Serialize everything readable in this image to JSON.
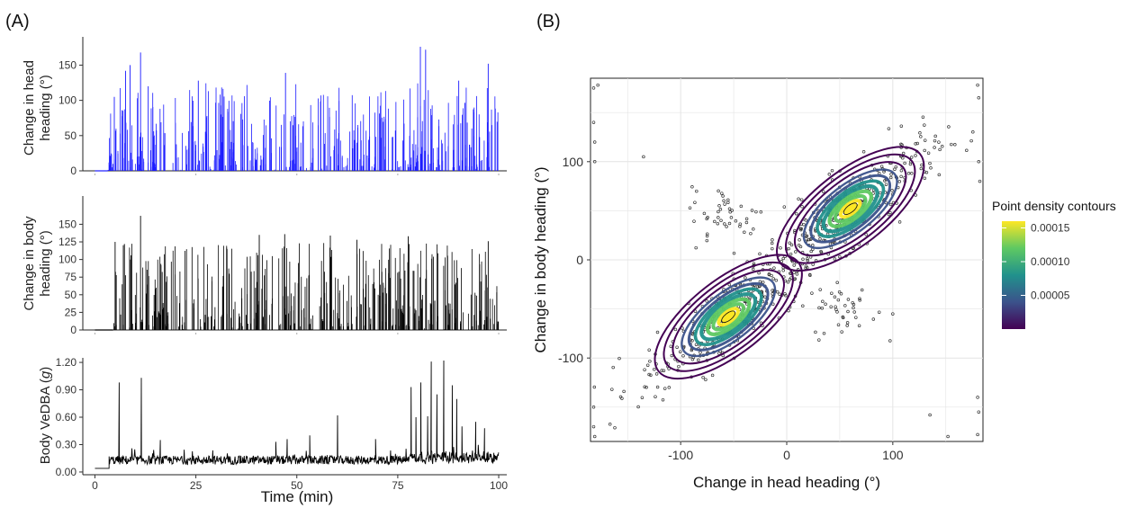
{
  "panel_labels": {
    "a": "(A)",
    "b": "(B)"
  },
  "colors": {
    "head_series": "#1a1aff",
    "body_series": "#000000",
    "vedba_series": "#000000",
    "scatter_points": "#333333",
    "viridis": [
      "#440154",
      "#3b528b",
      "#21918c",
      "#5ec962",
      "#fde725"
    ]
  },
  "chart_data": [
    {
      "type": "bar",
      "name": "head-heading-timeseries",
      "title": "",
      "xlabel": "",
      "ylabel": "Change in head heading (°)",
      "ylabel_lines": [
        "Change in head",
        "heading (°)"
      ],
      "xlim": [
        -3,
        102
      ],
      "ylim": [
        0,
        185
      ],
      "yticks": [
        0,
        50,
        100,
        150
      ],
      "ytick_labels": [
        "0",
        "50",
        "100",
        "150"
      ],
      "x_range_active": [
        3.2,
        100
      ],
      "baseline_value": 0,
      "peaks": [
        {
          "x": 4.8,
          "y": 105
        },
        {
          "x": 7.6,
          "y": 142
        },
        {
          "x": 8.7,
          "y": 150
        },
        {
          "x": 11.3,
          "y": 168
        },
        {
          "x": 13.2,
          "y": 120
        },
        {
          "x": 25.6,
          "y": 128
        },
        {
          "x": 47.2,
          "y": 139
        },
        {
          "x": 80.6,
          "y": 176
        },
        {
          "x": 81.9,
          "y": 172
        },
        {
          "x": 90.1,
          "y": 128
        },
        {
          "x": 97.4,
          "y": 152
        }
      ],
      "grid": false
    },
    {
      "type": "bar",
      "name": "body-heading-timeseries",
      "title": "",
      "xlabel": "",
      "ylabel": "Change in body heading (°)",
      "ylabel_lines": [
        "Change in body",
        "heading (°)"
      ],
      "xlim": [
        -3,
        102
      ],
      "ylim": [
        0,
        185
      ],
      "yticks": [
        0,
        25,
        50,
        75,
        100,
        125,
        150
      ],
      "ytick_labels": [
        "0",
        "25",
        "50",
        "75",
        "100",
        "125",
        "150"
      ],
      "x_range_active": [
        4.5,
        100
      ],
      "baseline_value": 0,
      "peaks": [
        {
          "x": 5.0,
          "y": 125
        },
        {
          "x": 7.3,
          "y": 122
        },
        {
          "x": 11.3,
          "y": 162
        },
        {
          "x": 40.7,
          "y": 135
        },
        {
          "x": 47.0,
          "y": 136
        },
        {
          "x": 58.3,
          "y": 134
        },
        {
          "x": 64.9,
          "y": 128
        },
        {
          "x": 77.6,
          "y": 133
        },
        {
          "x": 97.4,
          "y": 126
        }
      ],
      "grid": false
    },
    {
      "type": "line",
      "name": "vedba-timeseries",
      "title": "",
      "xlabel": "Time (min)",
      "ylabel": "Body VeDBA (g)",
      "ylabel_parts": [
        "Body VeDBA (",
        "g",
        ")"
      ],
      "xlim": [
        -3,
        102
      ],
      "ylim": [
        -0.03,
        1.25
      ],
      "xticks": [
        0,
        25,
        50,
        75,
        100
      ],
      "xtick_labels": [
        "0",
        "25",
        "50",
        "75",
        "100"
      ],
      "yticks": [
        0.0,
        0.3,
        0.6,
        0.9,
        1.2
      ],
      "ytick_labels": [
        "0.00",
        "0.30",
        "0.60",
        "0.90",
        "1.20"
      ],
      "baseline_level": 0.04,
      "noise_level": 0.12,
      "spikes": [
        {
          "x": 6.0,
          "y": 0.98
        },
        {
          "x": 11.5,
          "y": 1.03
        },
        {
          "x": 16.2,
          "y": 0.35
        },
        {
          "x": 44.8,
          "y": 0.33
        },
        {
          "x": 47.6,
          "y": 0.36
        },
        {
          "x": 53.2,
          "y": 0.4
        },
        {
          "x": 60.1,
          "y": 0.62
        },
        {
          "x": 69.5,
          "y": 0.36
        },
        {
          "x": 78.3,
          "y": 0.93
        },
        {
          "x": 79.5,
          "y": 0.6
        },
        {
          "x": 80.7,
          "y": 0.98
        },
        {
          "x": 82.4,
          "y": 0.61
        },
        {
          "x": 83.3,
          "y": 1.21
        },
        {
          "x": 84.7,
          "y": 0.85
        },
        {
          "x": 86.4,
          "y": 1.22
        },
        {
          "x": 88.5,
          "y": 0.95
        },
        {
          "x": 89.6,
          "y": 0.8
        },
        {
          "x": 90.9,
          "y": 0.5
        },
        {
          "x": 94.3,
          "y": 0.55
        },
        {
          "x": 96.5,
          "y": 0.48
        }
      ],
      "grid": false
    },
    {
      "type": "scatter",
      "name": "head-vs-body-density",
      "title": "",
      "xlabel": "Change in head heading (°)",
      "ylabel": "Change in body heading (°)",
      "xlim": [
        -185,
        185
      ],
      "ylim": [
        -185,
        185
      ],
      "xticks": [
        -100,
        0,
        100
      ],
      "xtick_labels": [
        "-100",
        "0",
        "100"
      ],
      "yticks": [
        -100,
        0,
        100
      ],
      "ytick_labels": [
        "-100",
        "0",
        "100"
      ],
      "clusters": [
        {
          "cx": 60,
          "cy": 52,
          "sx": 42,
          "sy": 36,
          "rho": 0.85,
          "n": 320
        },
        {
          "cx": -55,
          "cy": -58,
          "sx": 42,
          "sy": 38,
          "rho": 0.85,
          "n": 320
        },
        {
          "cx": -55,
          "cy": 45,
          "sx": 18,
          "sy": 15,
          "rho": 0.0,
          "n": 45
        },
        {
          "cx": 55,
          "cy": -50,
          "sx": 15,
          "sy": 15,
          "rho": 0.0,
          "n": 40
        }
      ],
      "edge_points": [
        {
          "x": -182,
          "y": 175
        },
        {
          "x": -178,
          "y": 178
        },
        {
          "x": -182,
          "y": 140
        },
        {
          "x": -181,
          "y": 120
        },
        {
          "x": -181,
          "y": 100
        },
        {
          "x": -182,
          "y": -150
        },
        {
          "x": -182,
          "y": -170
        },
        {
          "x": -181,
          "y": -180
        },
        {
          "x": 180,
          "y": 178
        },
        {
          "x": 181,
          "y": 165
        },
        {
          "x": 180,
          "y": -140
        },
        {
          "x": 181,
          "y": -155
        },
        {
          "x": 180,
          "y": -178
        },
        {
          "x": 181,
          "y": 100
        },
        {
          "x": 182,
          "y": 80
        },
        {
          "x": 152,
          "y": -180
        },
        {
          "x": 135,
          "y": -158
        },
        {
          "x": -85,
          "y": 70
        },
        {
          "x": -135,
          "y": 105
        },
        {
          "x": 100,
          "y": -55
        }
      ],
      "density_contours": {
        "legend_title": "Point density contours",
        "legend_ticks": [
          5e-05,
          0.0001,
          0.00015
        ],
        "legend_tick_labels": [
          "0.00005",
          "0.00010",
          "0.00015"
        ],
        "value_range": [
          0.0,
          0.00016
        ]
      },
      "grid": true,
      "legend_position": "right"
    }
  ]
}
